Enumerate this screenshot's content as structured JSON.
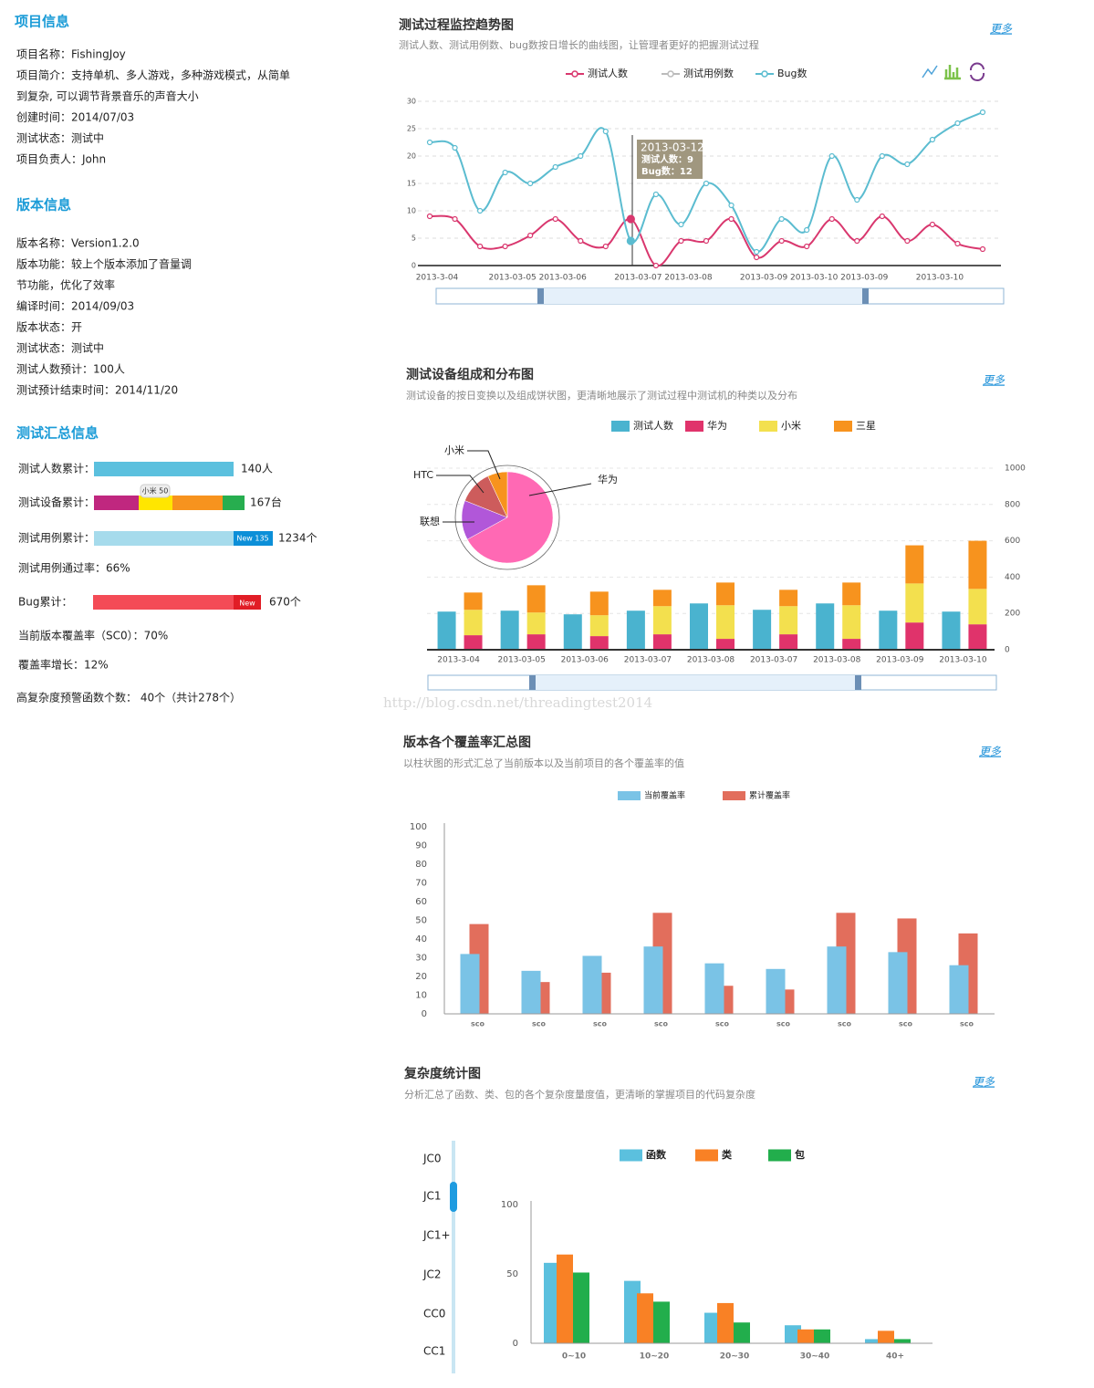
{
  "project_info": {
    "title": "项目信息",
    "lines": [
      "项目名称：FishingJoy",
      "项目简介：支持单机、多人游戏，多种游戏模式，从简单",
      "到复杂, 可以调节背景音乐的声音大小",
      "创建时间：2014/07/03",
      "测试状态：测试中",
      "项目负责人：John"
    ]
  },
  "version_info": {
    "title": "版本信息",
    "lines": [
      "版本名称：Version1.2.0",
      "版本功能：较上个版本添加了音量调",
      "节功能，优化了效率",
      "编译时间：2014/09/03",
      "版本状态：开",
      "测试状态：测试中",
      "测试人数预计：100人",
      "测试预计结束时间：2014/11/20"
    ]
  },
  "summary": {
    "title": "测试汇总信息",
    "items": [
      {
        "label": "测试人数累计：",
        "value": "140人"
      },
      {
        "label": "测试设备累计：",
        "value": "167台",
        "tag": "小米 50"
      },
      {
        "label": "测试用例累计：",
        "value": "1234个",
        "tag": "New 135"
      },
      {
        "label": "测试用例通过率：66%"
      },
      {
        "label": "Bug累计：",
        "value": "670个",
        "tag": "New"
      },
      {
        "label": "当前版本覆盖率（SC0）：70%"
      },
      {
        "label": "覆盖率增长：12%"
      },
      {
        "label": "高复杂度预警函数个数： 40个（共计278个）"
      }
    ]
  },
  "watermark": "http://blog.csdn.net/threadingtest2014",
  "chart_data": [
    {
      "type": "line",
      "title": "测试过程监控趋势图",
      "subtitle": "测试人数、测试用例数、bug数按日增长的曲线图，让管理者更好的把握测试过程",
      "more": "更多",
      "categories": [
        "2013-3-04",
        null,
        null,
        "2013-03-05",
        null,
        "2013-03-06",
        null,
        null,
        "2013-03-07",
        null,
        "2013-03-08",
        null,
        null,
        "2013-03-09",
        null,
        "2013-03-10",
        null,
        "2013-03-09",
        null,
        null,
        "2013-03-10",
        null,
        null
      ],
      "series": [
        {
          "name": "测试人数",
          "color": "#d9376e",
          "values": [
            9,
            8.5,
            3.5,
            3.5,
            5.5,
            8.5,
            4.5,
            3.5,
            8.5,
            0,
            4.5,
            4.5,
            8.5,
            1.5,
            4.5,
            3.5,
            8.5,
            4.5,
            9,
            4.5,
            7.5,
            4,
            3
          ]
        },
        {
          "name": "测试用例数",
          "color": "#bbbbbb",
          "values": [
            null,
            null,
            null,
            null,
            null,
            null,
            null,
            null,
            null,
            null,
            null,
            null,
            null,
            null,
            null,
            null,
            null,
            null,
            null,
            null,
            null,
            null,
            null
          ]
        },
        {
          "name": "Bug数",
          "color": "#5bbcd0",
          "values": [
            22.5,
            21.5,
            10,
            17,
            15,
            18,
            20,
            24.5,
            4.5,
            13,
            7.5,
            15,
            11,
            2.5,
            8.5,
            6.5,
            20,
            12,
            20,
            18.5,
            23,
            26,
            28
          ]
        }
      ],
      "ylim": [
        0,
        30
      ],
      "yticks": [
        0,
        5,
        10,
        15,
        20,
        25,
        30
      ],
      "grid": true,
      "tooltip": {
        "title": "2013-03-12",
        "lines": [
          "测试人数：9",
          "Bug数：12"
        ]
      }
    },
    {
      "type": "bar",
      "title": "测试设备组成和分布图",
      "subtitle": "测试设备的按日变换以及组成饼状图，更清晰地展示了测试过程中测试机的种类以及分布",
      "more": "更多",
      "categories": [
        "2013-3-04",
        "2013-03-05",
        "2013-03-06",
        "2013-03-07",
        "2013-03-08",
        "2013-03-07",
        "2013-03-08",
        "2013-03-09",
        "2013-03-10"
      ],
      "series": [
        {
          "name": "测试人数",
          "color": "#4ab3cf",
          "values": [
            210,
            215,
            195,
            215,
            255,
            220,
            255,
            215,
            210
          ]
        },
        {
          "name": "华为",
          "color": "#e0336b",
          "values": [
            80,
            85,
            75,
            85,
            60,
            85,
            60,
            150,
            140
          ]
        },
        {
          "name": "小米",
          "color": "#f3e04e",
          "values": [
            140,
            120,
            115,
            155,
            185,
            155,
            185,
            215,
            195
          ]
        },
        {
          "name": "三星",
          "color": "#f7931e",
          "values": [
            95,
            150,
            130,
            90,
            125,
            90,
            125,
            210,
            265
          ]
        }
      ],
      "groups": [
        [
          0
        ],
        [
          1,
          2,
          3
        ]
      ],
      "ylim": [
        0,
        1000
      ],
      "yticks": [
        0,
        200,
        400,
        600,
        800,
        1000
      ],
      "y_axis_side": "right",
      "grid": true
    },
    {
      "type": "pie",
      "labels": [
        "华为",
        "联想",
        "HTC",
        "小米"
      ],
      "values": [
        67,
        14,
        12,
        7
      ],
      "colors": [
        "#ff69b4",
        "#b157d9",
        "#cd5c5c",
        "#f7931e"
      ]
    },
    {
      "type": "bar",
      "title": "版本各个覆盖率汇总图",
      "subtitle": "以柱状图的形式汇总了当前版本以及当前项目的各个覆盖率的值",
      "more": "更多",
      "categories": [
        "sco",
        "sco",
        "sco",
        "sco",
        "sco",
        "sco",
        "sco",
        "sco",
        "sco"
      ],
      "series": [
        {
          "name": "当前覆盖率",
          "color": "#7ac3e6",
          "values": [
            32,
            23,
            31,
            36,
            27,
            24,
            36,
            33,
            26
          ]
        },
        {
          "name": "累计覆盖率",
          "color": "#e26e5c",
          "values": [
            48,
            17,
            22,
            54,
            15,
            13,
            54,
            51,
            43
          ]
        }
      ],
      "ylim": [
        0,
        100
      ],
      "yticks": [
        0,
        10,
        20,
        30,
        40,
        50,
        60,
        70,
        80,
        90,
        100
      ],
      "grid": false
    },
    {
      "type": "bar",
      "title": "复杂度统计图",
      "subtitle": "分析汇总了函数、类、包的各个复杂度量度值，更清晰的掌握项目的代码复杂度",
      "more": "更多",
      "side_list": [
        "JC0",
        "JC1",
        "JC1+",
        "JC2",
        "CC0",
        "CC1"
      ],
      "categories": [
        "0~10",
        "10~20",
        "20~30",
        "30~40",
        "40+"
      ],
      "series": [
        {
          "name": "函数",
          "color": "#5bc0de",
          "values": [
            58,
            45,
            22,
            13,
            3
          ]
        },
        {
          "name": "类",
          "color": "#f98125",
          "values": [
            64,
            36,
            29,
            10,
            9
          ]
        },
        {
          "name": "包",
          "color": "#22ae4c",
          "values": [
            51,
            30,
            15,
            10,
            3
          ]
        }
      ],
      "ylim": [
        0,
        100
      ],
      "yticks": [
        0,
        50,
        100
      ],
      "grid": false
    }
  ]
}
